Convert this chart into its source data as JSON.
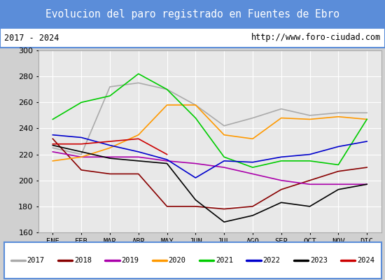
{
  "title": "Evolucion del paro registrado en Fuentes de Ebro",
  "subtitle_left": "2017 - 2024",
  "subtitle_right": "http://www.foro-ciudad.com",
  "months": [
    "ENE",
    "FEB",
    "MAR",
    "ABR",
    "MAY",
    "JUN",
    "JUL",
    "AGO",
    "SEP",
    "OCT",
    "NOV",
    "DIC"
  ],
  "ylim": [
    160,
    300
  ],
  "yticks": [
    160,
    180,
    200,
    220,
    240,
    260,
    280,
    300
  ],
  "series": {
    "2017": {
      "color": "#aaaaaa",
      "values": [
        225,
        220,
        272,
        275,
        270,
        258,
        242,
        248,
        255,
        250,
        252,
        252
      ]
    },
    "2018": {
      "color": "#880000",
      "values": [
        232,
        208,
        205,
        205,
        180,
        180,
        178,
        180,
        193,
        200,
        207,
        210
      ]
    },
    "2019": {
      "color": "#aa00aa",
      "values": [
        222,
        218,
        218,
        218,
        215,
        213,
        210,
        205,
        200,
        197,
        197,
        197
      ]
    },
    "2020": {
      "color": "#ff9900",
      "values": [
        215,
        218,
        225,
        235,
        258,
        258,
        235,
        232,
        248,
        247,
        249,
        247
      ]
    },
    "2021": {
      "color": "#00cc00",
      "values": [
        247,
        260,
        265,
        282,
        270,
        248,
        218,
        210,
        215,
        215,
        212,
        247
      ]
    },
    "2022": {
      "color": "#0000cc",
      "values": [
        235,
        233,
        227,
        222,
        216,
        202,
        215,
        214,
        218,
        220,
        226,
        230
      ]
    },
    "2023": {
      "color": "#000000",
      "values": [
        227,
        222,
        217,
        215,
        213,
        185,
        168,
        173,
        183,
        180,
        193,
        197
      ]
    },
    "2024": {
      "color": "#cc0000",
      "values": [
        228,
        228,
        230,
        232,
        220,
        null,
        null,
        null,
        null,
        null,
        null,
        null
      ]
    }
  },
  "title_bg": "#5b8dd9",
  "title_color": "white",
  "plot_bg": "#e8e8e8",
  "grid_color": "#ffffff",
  "border_color": "#5b8dd9",
  "fig_bg": "#d0d0d0"
}
